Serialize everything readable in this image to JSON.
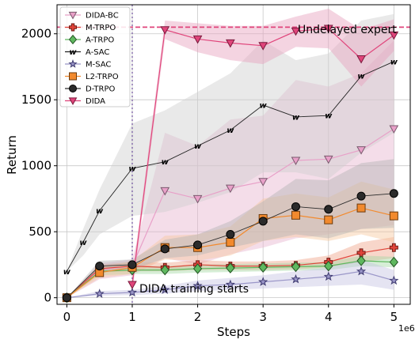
{
  "chart_data": {
    "type": "line",
    "xlabel": "Steps",
    "ylabel": "Return",
    "x_multiplier_label": "1e6",
    "xlim": [
      -0.15,
      5.25
    ],
    "ylim": [
      -50,
      2220
    ],
    "xticks": [
      0,
      1,
      2,
      3,
      4,
      5
    ],
    "yticks": [
      0,
      500,
      1000,
      1500,
      2000
    ],
    "grid": true,
    "legend_position": "top-left",
    "reference_line": {
      "label": "Undelayed expert",
      "y": 2050,
      "color": "#e0457b"
    },
    "vertical_marker": {
      "label": "DIDA training starts",
      "x": 1.0,
      "color": "#6b4c9a"
    },
    "series": [
      {
        "name": "DIDA-BC",
        "color": "#e8a0c8",
        "edge": "#7a5a6e",
        "marker": "triangle-down",
        "x": [
          0,
          0.5,
          1,
          1.5,
          2,
          2.5,
          3,
          3.5,
          4,
          4.5,
          5
        ],
        "y": [
          0,
          210,
          240,
          810,
          750,
          830,
          880,
          1040,
          1050,
          1120,
          1280
        ],
        "lower": [
          0,
          140,
          170,
          300,
          250,
          330,
          380,
          450,
          480,
          520,
          550
        ],
        "upper": [
          0,
          260,
          290,
          1250,
          1150,
          1350,
          1380,
          1650,
          1600,
          1700,
          1950
        ],
        "band_color": "#e6b3cf"
      },
      {
        "name": "M-TRPO",
        "color": "#e0443a",
        "edge": "#6e1a14",
        "marker": "plus",
        "x": [
          0,
          0.5,
          1,
          1.5,
          2,
          2.5,
          3,
          3.5,
          4,
          4.5,
          5
        ],
        "y": [
          0,
          220,
          240,
          230,
          250,
          240,
          240,
          245,
          270,
          340,
          380
        ],
        "lower": [
          0,
          190,
          200,
          200,
          210,
          210,
          210,
          215,
          230,
          270,
          300
        ],
        "upper": [
          0,
          250,
          270,
          265,
          285,
          275,
          275,
          285,
          320,
          420,
          460
        ],
        "band_color": "#f0a58a"
      },
      {
        "name": "A-TRPO",
        "color": "#5fb85f",
        "edge": "#245524",
        "marker": "diamond",
        "x": [
          0,
          0.5,
          1,
          1.5,
          2,
          2.5,
          3,
          3.5,
          4,
          4.5,
          5
        ],
        "y": [
          0,
          200,
          210,
          210,
          220,
          225,
          230,
          235,
          240,
          280,
          270
        ],
        "lower": [
          0,
          170,
          180,
          180,
          190,
          195,
          200,
          205,
          210,
          240,
          230
        ],
        "upper": [
          0,
          230,
          240,
          240,
          250,
          255,
          260,
          265,
          270,
          320,
          310
        ],
        "band_color": "#a3d9a3"
      },
      {
        "name": "A-SAC",
        "color": "#222222",
        "edge": "#000000",
        "marker": "w",
        "x": [
          0,
          0.25,
          0.5,
          1,
          1.5,
          2,
          2.5,
          3,
          3.5,
          4,
          4.5,
          5
        ],
        "y": [
          200,
          420,
          660,
          980,
          1030,
          1150,
          1270,
          1460,
          1370,
          1380,
          1680,
          1790
        ],
        "lower": [
          200,
          320,
          480,
          620,
          650,
          720,
          800,
          950,
          950,
          900,
          1100,
          1250
        ],
        "upper": [
          200,
          520,
          820,
          1320,
          1420,
          1560,
          1700,
          1950,
          1800,
          1850,
          2100,
          2150
        ],
        "band_color": "#cfcfcf"
      },
      {
        "name": "M-SAC",
        "color": "#9a96c8",
        "edge": "#3e3a70",
        "marker": "star",
        "x": [
          0,
          0.5,
          1,
          1.5,
          2,
          2.5,
          3,
          3.5,
          4,
          4.5,
          5
        ],
        "y": [
          0,
          30,
          40,
          60,
          90,
          100,
          120,
          140,
          160,
          200,
          130
        ],
        "lower": [
          0,
          15,
          20,
          30,
          50,
          60,
          70,
          80,
          90,
          100,
          60
        ],
        "upper": [
          0,
          50,
          60,
          90,
          130,
          150,
          170,
          200,
          230,
          290,
          210
        ],
        "band_color": "#c6c3e3"
      },
      {
        "name": "L2-TRPO",
        "color": "#f28a2e",
        "edge": "#6b3a0e",
        "marker": "square",
        "x": [
          0,
          0.5,
          1,
          1.5,
          2,
          2.5,
          3,
          3.5,
          4,
          4.5,
          5
        ],
        "y": [
          0,
          190,
          230,
          380,
          380,
          420,
          600,
          625,
          590,
          680,
          620
        ],
        "lower": [
          0,
          150,
          180,
          290,
          280,
          320,
          430,
          460,
          430,
          480,
          420
        ],
        "upper": [
          0,
          230,
          280,
          470,
          480,
          540,
          750,
          790,
          760,
          880,
          820
        ],
        "band_color": "#f7c79e"
      },
      {
        "name": "D-TRPO",
        "color": "#2b2b2b",
        "edge": "#000000",
        "marker": "circle",
        "x": [
          0,
          0.5,
          1,
          1.5,
          2,
          2.5,
          3,
          3.5,
          4,
          4.5,
          5
        ],
        "y": [
          0,
          240,
          250,
          370,
          400,
          480,
          580,
          690,
          670,
          770,
          790
        ],
        "lower": [
          0,
          200,
          210,
          300,
          320,
          380,
          430,
          480,
          450,
          520,
          530
        ],
        "upper": [
          0,
          280,
          290,
          440,
          480,
          580,
          730,
          900,
          890,
          1020,
          1050
        ],
        "band_color": "#b3b3b3"
      },
      {
        "name": "DIDA",
        "color": "#e0457b",
        "edge": "#7a1a3c",
        "marker": "triangle-down",
        "x": [
          1,
          1.5,
          2,
          2.5,
          3,
          3.5,
          4,
          4.5,
          5
        ],
        "y": [
          100,
          2030,
          1960,
          1930,
          1910,
          2020,
          2040,
          1810,
          1990
        ],
        "lower": [
          40,
          1960,
          1860,
          1800,
          1770,
          1900,
          1890,
          1600,
          1870
        ],
        "upper": [
          160,
          2100,
          2080,
          2060,
          2060,
          2130,
          2190,
          2030,
          2110
        ],
        "band_color": "#e7a0bd"
      }
    ]
  }
}
